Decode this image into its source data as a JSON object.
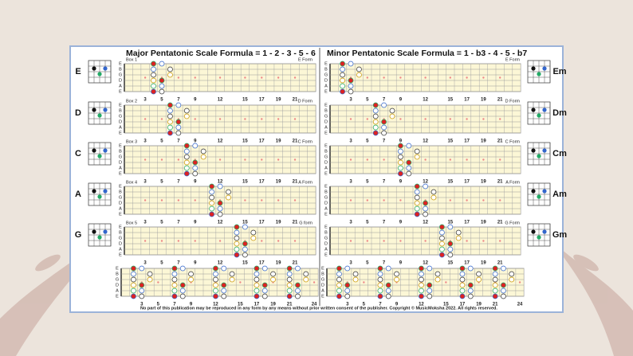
{
  "left": {
    "title": "Major Pentatonic Scale Formula = 1 - 2 - 3 - 5 - 6",
    "rows": [
      {
        "box": "Box 1",
        "form": "E Form",
        "chord": "E"
      },
      {
        "box": "Box 2",
        "form": "D Form",
        "chord": "D"
      },
      {
        "box": "Box 3",
        "form": "C Form",
        "chord": "C"
      },
      {
        "box": "Box 4",
        "form": "A Form",
        "chord": "A"
      },
      {
        "box": "Box 5",
        "form": "G form",
        "chord": "G"
      }
    ]
  },
  "right": {
    "title": "Minor Pentatonic Scale Formula = 1 - b3 - 4 - 5 - b7",
    "rows": [
      {
        "form": "E Form",
        "chord": "Em"
      },
      {
        "form": "D Form",
        "chord": "Dm"
      },
      {
        "form": "C Form",
        "chord": "Cm"
      },
      {
        "form": "A Form",
        "chord": "Am"
      },
      {
        "form": "G Form",
        "chord": "Gm"
      }
    ]
  },
  "string_names": [
    "E",
    "B",
    "G",
    "D",
    "A",
    "E"
  ],
  "fret_markers": [
    3,
    5,
    7,
    9,
    12,
    15,
    17,
    19,
    21
  ],
  "neck_markers": [
    3,
    5,
    7,
    9,
    12,
    15,
    17,
    19,
    21,
    24
  ],
  "footer": "No part of this publication may be reproduced in any form by any means without prior written consent of the publisher. Copyright © MusicMoksha 2022. All rights reserved."
}
